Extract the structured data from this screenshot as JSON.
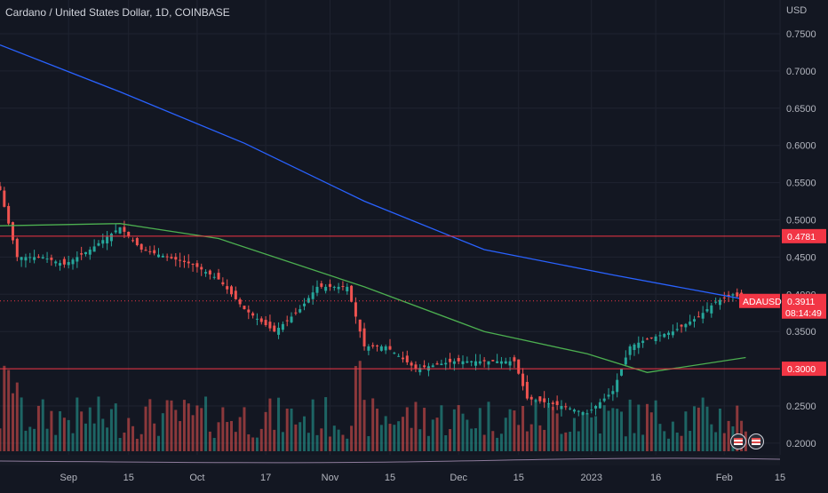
{
  "header": {
    "title": "Cardano / United States Dollar, 1D, COINBASE"
  },
  "price_axis": {
    "currency": "USD",
    "ticks": [
      "0.7500",
      "0.7000",
      "0.6500",
      "0.6000",
      "0.5500",
      "0.5000",
      "0.4500",
      "0.4000",
      "0.3500",
      "0.3000",
      "0.2500",
      "0.2000"
    ]
  },
  "time_axis": {
    "ticks": [
      "Sep",
      "15",
      "Oct",
      "17",
      "Nov",
      "15",
      "Dec",
      "15",
      "2023",
      "16",
      "Feb",
      "15"
    ]
  },
  "tags": {
    "level_high": "0.4781",
    "symbol": "ADAUSD",
    "last_price": "0.3911",
    "countdown": "08:14:49",
    "level_low": "0.3000"
  },
  "colors": {
    "background": "#131722",
    "up": "#26a69a",
    "down": "#ef5350",
    "ma_long": "#2962ff",
    "ma_short": "#4caf50",
    "level_line": "#f23645"
  },
  "icons": [
    "flag-us-icon",
    "flag-us-icon-2"
  ],
  "chart_data": {
    "type": "candlestick",
    "symbol": "ADAUSD",
    "exchange": "COINBASE",
    "interval": "1D",
    "y_range": [
      0.19,
      0.79
    ],
    "x_range": [
      "2022-08-16",
      "2023-02-14"
    ],
    "horizontal_levels": [
      0.4781,
      0.3
    ],
    "last_price": 0.3911,
    "close_path": [
      {
        "date": "2022-08-16",
        "close": 0.54
      },
      {
        "date": "2022-08-20",
        "close": 0.45
      },
      {
        "date": "2022-08-26",
        "close": 0.45
      },
      {
        "date": "2022-08-31",
        "close": 0.44
      },
      {
        "date": "2022-09-06",
        "close": 0.46
      },
      {
        "date": "2022-09-13",
        "close": 0.49
      },
      {
        "date": "2022-09-18",
        "close": 0.46
      },
      {
        "date": "2022-09-24",
        "close": 0.45
      },
      {
        "date": "2022-09-30",
        "close": 0.44
      },
      {
        "date": "2022-10-06",
        "close": 0.42
      },
      {
        "date": "2022-10-12",
        "close": 0.38
      },
      {
        "date": "2022-10-19",
        "close": 0.35
      },
      {
        "date": "2022-10-25",
        "close": 0.38
      },
      {
        "date": "2022-10-29",
        "close": 0.41
      },
      {
        "date": "2022-11-05",
        "close": 0.41
      },
      {
        "date": "2022-11-09",
        "close": 0.33
      },
      {
        "date": "2022-11-14",
        "close": 0.33
      },
      {
        "date": "2022-11-21",
        "close": 0.3
      },
      {
        "date": "2022-11-30",
        "close": 0.31
      },
      {
        "date": "2022-12-07",
        "close": 0.31
      },
      {
        "date": "2022-12-14",
        "close": 0.31
      },
      {
        "date": "2022-12-17",
        "close": 0.26
      },
      {
        "date": "2022-12-25",
        "close": 0.25
      },
      {
        "date": "2022-12-31",
        "close": 0.24
      },
      {
        "date": "2023-01-06",
        "close": 0.27
      },
      {
        "date": "2023-01-10",
        "close": 0.33
      },
      {
        "date": "2023-01-14",
        "close": 0.34
      },
      {
        "date": "2023-01-20",
        "close": 0.35
      },
      {
        "date": "2023-01-26",
        "close": 0.37
      },
      {
        "date": "2023-01-30",
        "close": 0.39
      },
      {
        "date": "2023-02-03",
        "close": 0.4
      },
      {
        "date": "2023-02-06",
        "close": 0.3911
      }
    ],
    "moving_averages": [
      {
        "color": "#2962ff",
        "points": [
          {
            "date": "2022-08-16",
            "value": 0.735
          },
          {
            "date": "2022-09-13",
            "value": 0.672
          },
          {
            "date": "2022-10-12",
            "value": 0.603
          },
          {
            "date": "2022-11-09",
            "value": 0.525
          },
          {
            "date": "2022-12-07",
            "value": 0.46
          },
          {
            "date": "2023-01-06",
            "value": 0.426
          },
          {
            "date": "2023-02-06",
            "value": 0.393
          }
        ]
      },
      {
        "color": "#4caf50",
        "points": [
          {
            "date": "2022-08-16",
            "value": 0.492
          },
          {
            "date": "2022-09-13",
            "value": 0.495
          },
          {
            "date": "2022-10-06",
            "value": 0.475
          },
          {
            "date": "2022-11-09",
            "value": 0.41
          },
          {
            "date": "2022-12-07",
            "value": 0.35
          },
          {
            "date": "2022-12-31",
            "value": 0.32
          },
          {
            "date": "2023-01-14",
            "value": 0.295
          },
          {
            "date": "2023-02-06",
            "value": 0.315
          }
        ]
      }
    ]
  }
}
